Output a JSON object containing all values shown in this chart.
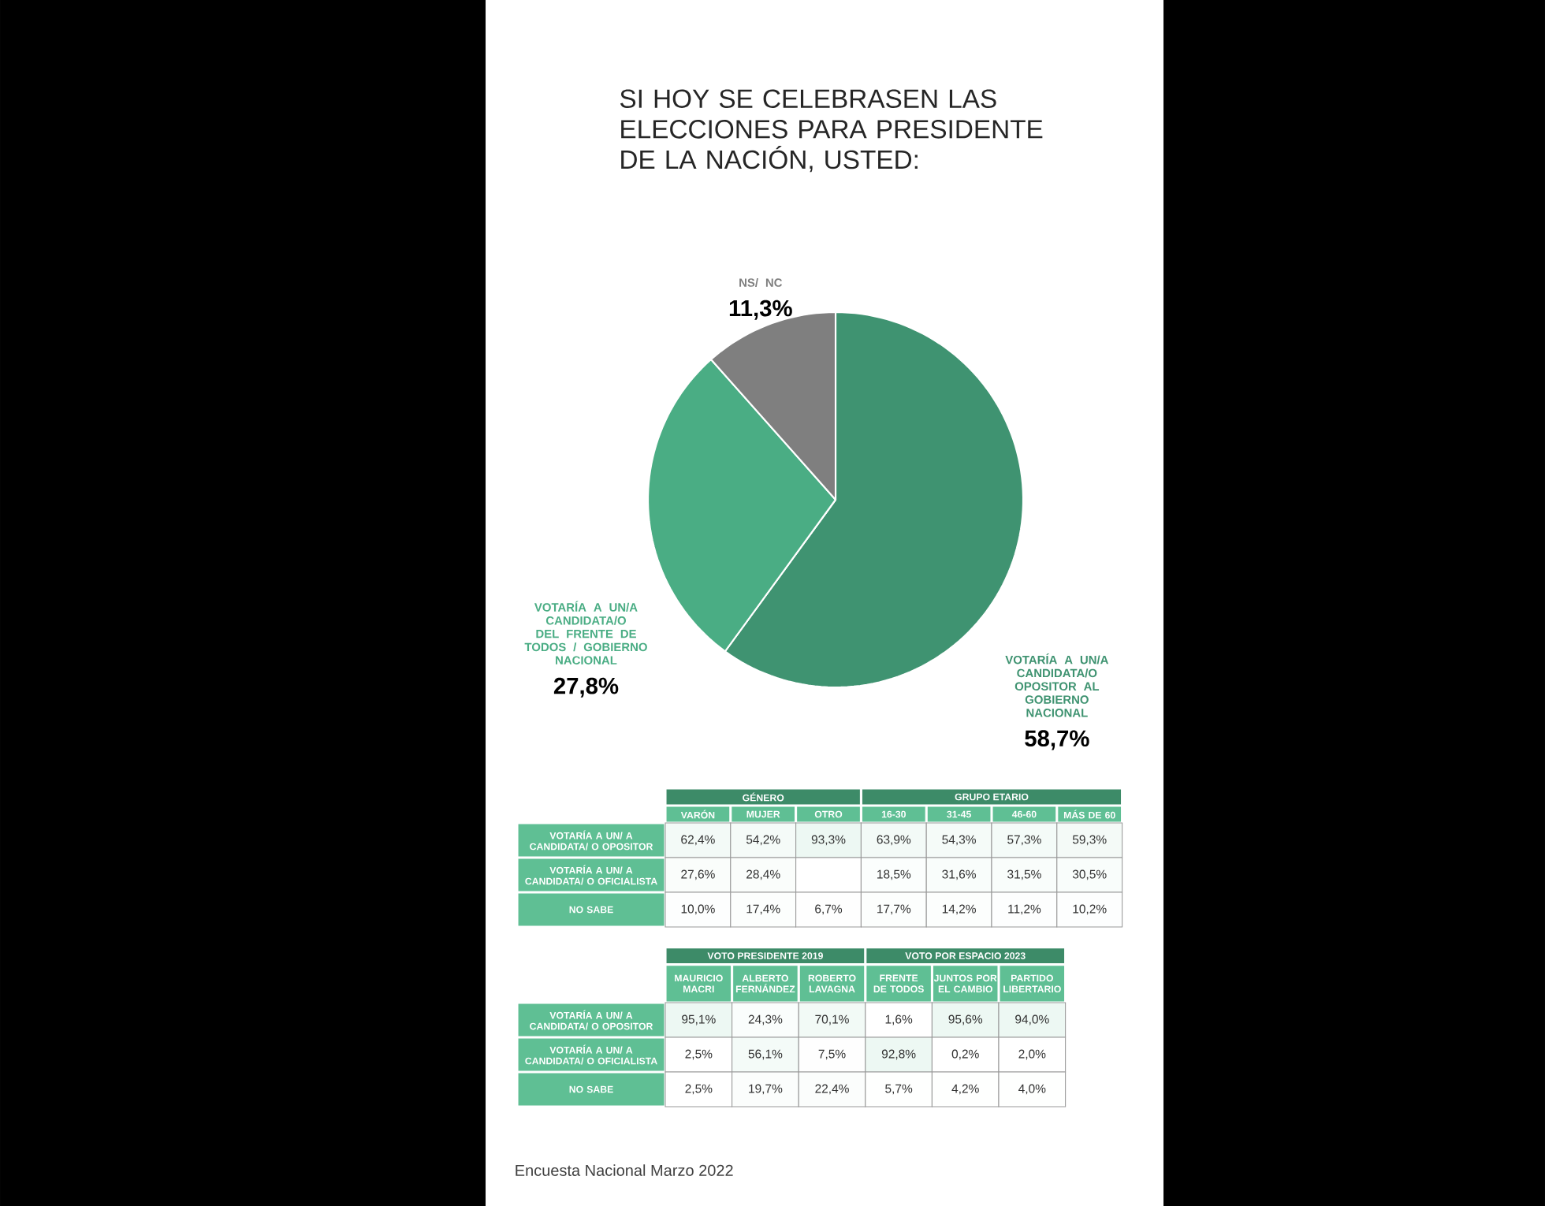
{
  "chart_data": [
    {
      "type": "pie",
      "title": "SI HOY SE CELEBRASEN LAS ELECCIONES PARA PRESIDENTE DE LA NACIÓN, USTED:",
      "categories": [
        "VOTARÍA A UN/A CANDIDATA/O OPOSITOR AL GOBIERNO NACIONAL",
        "VOTARÍA A UN/A CANDIDATA/O DEL FRENTE DE TODOS / GOBIERNO NACIONAL",
        "NS/ NC"
      ],
      "values": [
        58.7,
        27.8,
        11.3
      ],
      "colors": [
        "#3f9371",
        "#4aad84",
        "#7f7f7f"
      ],
      "value_labels": [
        "58,7%",
        "27,8%",
        "11,3%"
      ]
    },
    {
      "type": "heatmap",
      "categories": [
        "VARÓN",
        "MUJER",
        "OTRO",
        "16-30",
        "31-45",
        "46-60",
        "MÁS DE 60"
      ],
      "y_categories": [
        "VOTARÍA A UN/ A CANDIDATA/ O OPOSITOR",
        "VOTARÍA A UN/ A CANDIDATA/ O OFICIALISTA",
        "NO SABE"
      ],
      "cells": [
        [
          62.4,
          54.2,
          93.3,
          63.9,
          54.3,
          57.3,
          59.3
        ],
        [
          27.6,
          28.4,
          null,
          18.5,
          31.6,
          31.5,
          30.5
        ],
        [
          10.0,
          17.4,
          6.7,
          17.7,
          14.2,
          11.2,
          10.2
        ]
      ],
      "cell_labels": [
        [
          "62,4%",
          "54,2%",
          "93,3%",
          "63,9%",
          "54,3%",
          "57,3%",
          "59,3%"
        ],
        [
          "27,6%",
          "28,4%",
          null,
          "18,5%",
          "31,6%",
          "31,5%",
          "30,5%"
        ],
        [
          "10,0%",
          "17,4%",
          "6,7%",
          "17,7%",
          "14,2%",
          "11,2%",
          "10,2%"
        ]
      ],
      "annotations": [
        "GÉNERO",
        "GRUPO ETARIO"
      ]
    },
    {
      "type": "heatmap",
      "categories": [
        "MAURICIO MACRI",
        "ALBERTO FERNÁNDEZ",
        "ROBERTO LAVAGNA",
        "FRENTE DE TODOS",
        "JUNTOS POR EL CAMBIO",
        "PARTIDO LIBERTARIO"
      ],
      "y_categories": [
        "VOTARÍA A UN/ A CANDIDATA/ O OPOSITOR",
        "VOTARÍA A UN/ A CANDIDATA/ O OFICIALISTA",
        "NO SABE"
      ],
      "cells": [
        [
          95.1,
          24.3,
          70.1,
          1.6,
          95.6,
          94.0
        ],
        [
          2.5,
          56.1,
          7.5,
          92.8,
          0.2,
          2.0
        ],
        [
          2.5,
          19.7,
          22.4,
          5.7,
          4.2,
          4.0
        ]
      ],
      "cell_labels": [
        [
          "95,1%",
          "24,3%",
          "70,1%",
          "1,6%",
          "95,6%",
          "94,0%"
        ],
        [
          "2,5%",
          "56,1%",
          "7,5%",
          "92,8%",
          "0,2%",
          "2,0%"
        ],
        [
          "2,5%",
          "19,7%",
          "22,4%",
          "5,7%",
          "4,2%",
          "4,0%"
        ]
      ],
      "annotations": [
        "VOTO PRESIDENTE 2019",
        "VOTO POR ESPACIO 2023",
        "Encuesta Nacional Marzo 2022"
      ]
    }
  ]
}
